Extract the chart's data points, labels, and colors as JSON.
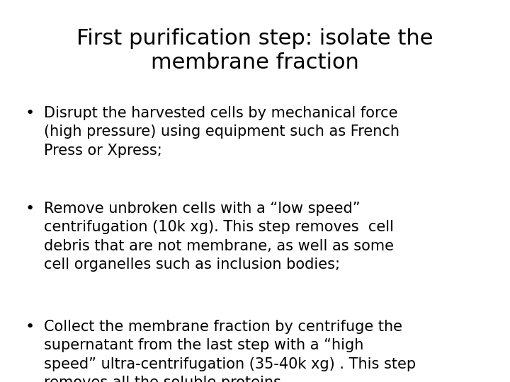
{
  "title_line1": "First purification step: isolate the",
  "title_line2": "membrane fraction",
  "title_fontsize": 22,
  "title_fontfamily": "DejaVu Sans",
  "background_color": "#ffffff",
  "text_color": "#000000",
  "bullet_points": [
    "Disrupt the harvested cells by mechanical force\n(high pressure) using equipment such as French\nPress or Xpress;",
    "Remove unbroken cells with a “low speed”\ncentrifugation (10k xg). This step removes  cell\ndebris that are not membrane, as well as some\ncell organelles such as inclusion bodies;",
    "Collect the membrane fraction by centrifuge the\nsupernatant from the last step with a “high\nspeed” ultra-centrifugation (35-40k xg) . This step\nremoves all the soluble proteins."
  ],
  "bullet_fontsize": 15,
  "bullet_symbol": "•",
  "fig_width": 7.2,
  "fig_height": 5.4,
  "dpi": 100
}
